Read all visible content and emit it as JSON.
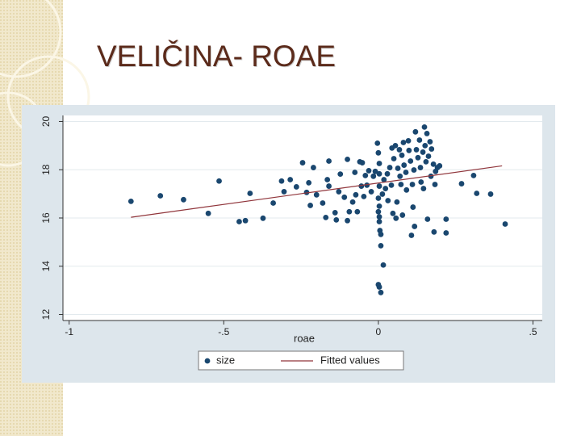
{
  "chart_data": {
    "type": "scatter",
    "title": "VELIČINA- ROAE",
    "x_label": "roae",
    "xlim": [
      -1.02,
      0.53
    ],
    "ylim": [
      11.75,
      20.25
    ],
    "xticks": [
      {
        "value": -1,
        "label": "-1"
      },
      {
        "value": -0.5,
        "label": "-.5"
      },
      0,
      {
        "value": 0.5,
        "label": ".5"
      }
    ],
    "yticks": [
      12,
      14,
      16,
      18,
      20
    ],
    "grid": true,
    "series": [
      {
        "name": "size",
        "type": "scatter",
        "color": "#1a476f",
        "x": [
          -0.8,
          -0.705,
          -0.63,
          -0.55,
          -0.515,
          -0.45,
          -0.43,
          -0.415,
          -0.373,
          -0.34,
          -0.313,
          -0.305,
          -0.285,
          -0.265,
          -0.245,
          -0.232,
          -0.22,
          -0.225,
          -0.21,
          -0.2,
          -0.18,
          -0.17,
          -0.16,
          -0.165,
          -0.16,
          -0.136,
          -0.14,
          -0.128,
          -0.123,
          -0.11,
          -0.1,
          -0.1,
          -0.094,
          -0.083,
          -0.076,
          -0.073,
          -0.068,
          -0.06,
          -0.055,
          -0.052,
          -0.047,
          -0.042,
          -0.037,
          -0.031,
          -0.023,
          -0.016,
          -0.01,
          -0.003,
          0,
          0.003,
          0.003,
          0.003,
          0,
          0.003,
          0,
          0.003,
          0.003,
          0.005,
          0.008,
          0.008,
          0.016,
          0,
          0.003,
          0.008,
          0.013,
          0.018,
          0.023,
          0.029,
          0.031,
          0.037,
          0.042,
          0.047,
          0.044,
          0.05,
          0.055,
          0.057,
          0.06,
          0.063,
          0.068,
          0.07,
          0.073,
          0.076,
          0.078,
          0.081,
          0.083,
          0.089,
          0.091,
          0.097,
          0.099,
          0.104,
          0.107,
          0.11,
          0.112,
          0.115,
          0.117,
          0.12,
          0.123,
          0.128,
          0.133,
          0.136,
          0.138,
          0.144,
          0.146,
          0.149,
          0.151,
          0.154,
          0.157,
          0.159,
          0.162,
          0.167,
          0.17,
          0.172,
          0.178,
          0.18,
          0.183,
          0.185,
          0.191,
          0.198,
          0.219,
          0.219,
          0.269,
          0.308,
          0.318,
          0.363,
          0.41
        ],
        "values": [
          16.69,
          16.92,
          16.76,
          16.19,
          17.53,
          15.85,
          15.89,
          17.02,
          15.99,
          16.62,
          17.53,
          17.09,
          17.59,
          17.29,
          18.29,
          17.06,
          16.52,
          17.46,
          18.09,
          16.96,
          16.62,
          16.02,
          18.36,
          17.59,
          17.32,
          15.92,
          16.22,
          17.09,
          17.82,
          16.86,
          18.43,
          15.89,
          16.26,
          16.66,
          17.89,
          16.96,
          16.26,
          18.33,
          17.32,
          18.29,
          16.89,
          17.76,
          17.36,
          17.96,
          17.09,
          17.73,
          17.93,
          19.1,
          18.7,
          18.26,
          17.83,
          17.32,
          16.82,
          16.49,
          16.26,
          16.05,
          15.85,
          15.48,
          15.32,
          14.85,
          14.05,
          13.24,
          13.14,
          12.91,
          16.99,
          17.59,
          17.22,
          17.83,
          16.72,
          18.09,
          17.36,
          16.19,
          18.9,
          18.46,
          19.0,
          15.99,
          16.66,
          18.06,
          18.83,
          17.73,
          17.39,
          18.6,
          16.12,
          19.13,
          18.19,
          17.89,
          17.16,
          19.2,
          18.8,
          18.36,
          15.28,
          17.39,
          16.45,
          17.99,
          15.65,
          19.57,
          18.83,
          18.5,
          19.23,
          18.09,
          17.49,
          18.73,
          17.22,
          19.77,
          19.0,
          18.33,
          19.5,
          15.95,
          18.56,
          19.16,
          17.73,
          18.86,
          18.23,
          15.42,
          17.39,
          17.93,
          18.09,
          18.16,
          15.95,
          15.38,
          17.42,
          17.76,
          17.02,
          16.99,
          15.75
        ]
      },
      {
        "name": "Fitted values",
        "type": "line",
        "color": "#90353b",
        "x": [
          -0.8,
          0.4
        ],
        "values": [
          16.03,
          18.16
        ]
      }
    ]
  }
}
